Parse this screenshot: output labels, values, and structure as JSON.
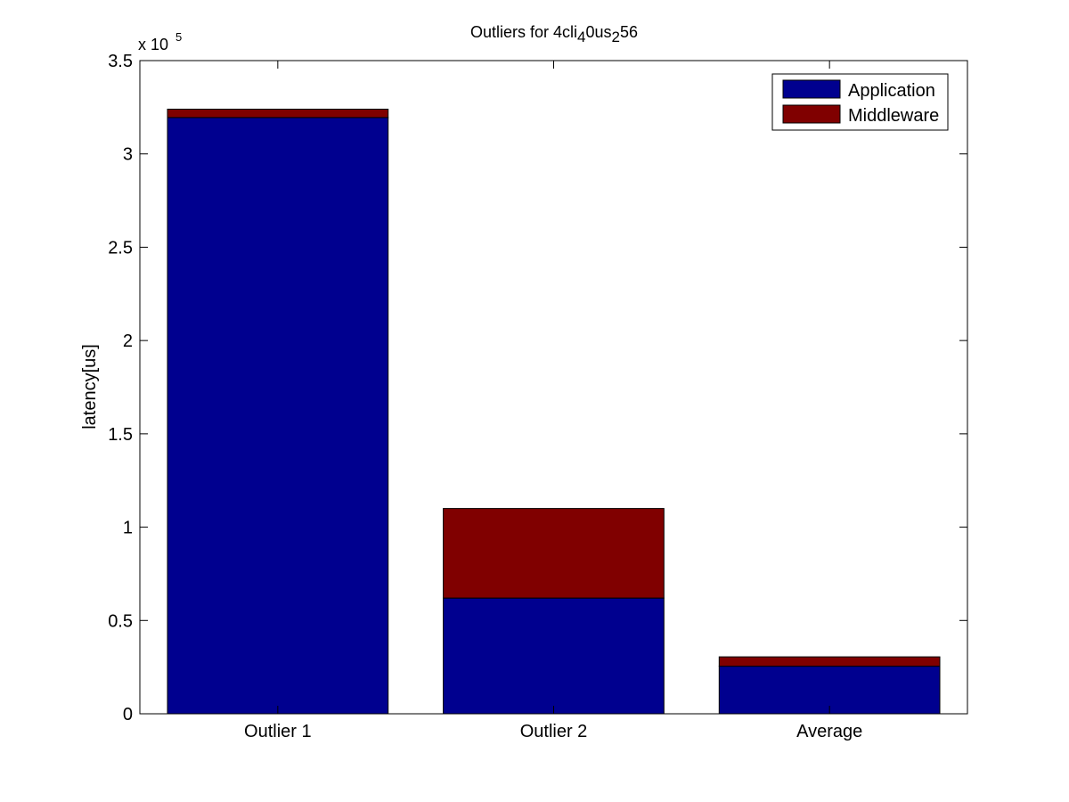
{
  "chart_data": {
    "type": "bar",
    "stacked": true,
    "title_parts": [
      {
        "text": "Outliers for 4cli",
        "sub": false
      },
      {
        "text": "4",
        "sub": true
      },
      {
        "text": "0us",
        "sub": false
      },
      {
        "text": "2",
        "sub": true
      },
      {
        "text": "56",
        "sub": false
      }
    ],
    "xlabel": "",
    "ylabel": "latency[us]",
    "y_multiplier_base": "x 10",
    "y_multiplier_exponent": "5",
    "ylim": [
      0,
      350000
    ],
    "yticks": [
      0,
      50000,
      100000,
      150000,
      200000,
      250000,
      300000,
      350000
    ],
    "ytick_labels": [
      "0",
      "0.5",
      "1",
      "1.5",
      "2",
      "2.5",
      "3",
      "3.5"
    ],
    "categories": [
      "Outlier 1",
      "Outlier 2",
      "Average"
    ],
    "series": [
      {
        "name": "Application",
        "color": "#00008F",
        "values": [
          319500,
          62000,
          25500
        ]
      },
      {
        "name": "Middleware",
        "color": "#800000",
        "values": [
          4500,
          48000,
          5000
        ]
      }
    ],
    "legend_position": "top-right",
    "grid": false
  }
}
